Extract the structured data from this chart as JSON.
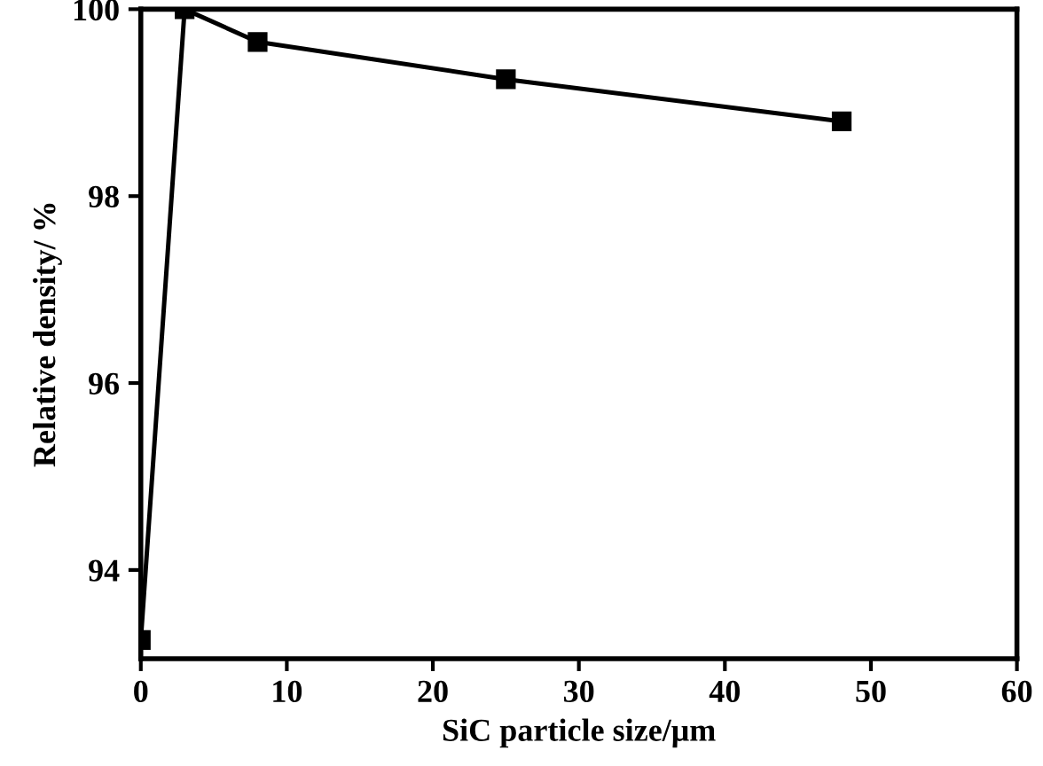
{
  "chart_data": {
    "type": "line",
    "xlabel": "SiC particle size/μm",
    "ylabel": "Relative density/ %",
    "x": [
      0,
      3,
      8,
      25,
      48
    ],
    "series": [
      {
        "color": "#000000",
        "values": [
          93.25,
          100,
          99.65,
          99.25,
          98.8
        ]
      }
    ],
    "xlim": [
      0,
      60
    ],
    "xticks": [
      0,
      10,
      20,
      30,
      40,
      50,
      60
    ],
    "ylim": [
      93.05,
      100
    ],
    "yticks": [
      94,
      96,
      98,
      100
    ],
    "grid": false,
    "legend": false,
    "marker": "square",
    "line_style": "solid"
  }
}
